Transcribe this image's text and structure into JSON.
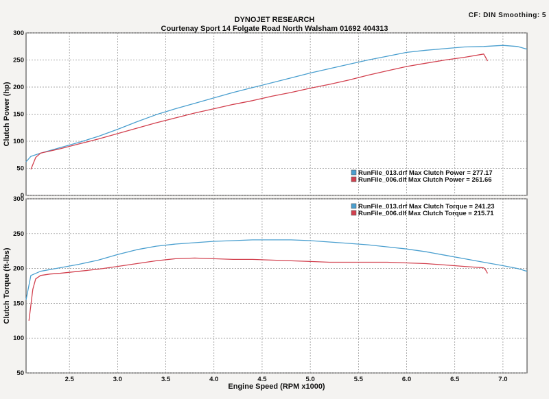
{
  "header": {
    "title": "DYNOJET RESEARCH",
    "subtitle": "Courtenay Sport 14 Folgate Road North Walsham 01692 404313",
    "corner": "CF: DIN  Smoothing: 5"
  },
  "colors": {
    "run013": "#4a9fcf",
    "run006": "#d2404e"
  },
  "chart_data": [
    {
      "type": "line",
      "title": "",
      "xlabel": "",
      "ylabel": "Clutch Power (hp)",
      "xlim": [
        2.05,
        7.25
      ],
      "ylim": [
        0,
        300
      ],
      "x_ticks": [
        "2.5",
        "3.0",
        "3.5",
        "4.0",
        "4.5",
        "5.0",
        "5.5",
        "6.0",
        "6.5",
        "7.0"
      ],
      "y_ticks": [
        "0",
        "50",
        "100",
        "150",
        "200",
        "250",
        "300"
      ],
      "grid": true,
      "legend_position": "bottom-right",
      "legend": [
        "RunFile_013.drf Max Clutch Power = 277.17",
        "RunFile_006.dlf Max Clutch Power = 261.66"
      ],
      "series": [
        {
          "name": "RunFile_013.drf",
          "color": "#4a9fcf",
          "x": [
            2.05,
            2.1,
            2.2,
            2.4,
            2.6,
            2.8,
            3.0,
            3.2,
            3.4,
            3.6,
            3.8,
            4.0,
            4.2,
            4.4,
            4.6,
            4.8,
            5.0,
            5.2,
            5.4,
            5.6,
            5.8,
            6.0,
            6.2,
            6.4,
            6.6,
            6.8,
            7.0,
            7.15,
            7.25
          ],
          "y": [
            62,
            72,
            78,
            88,
            98,
            109,
            122,
            136,
            149,
            160,
            170,
            180,
            190,
            199,
            208,
            217,
            226,
            234,
            242,
            250,
            257,
            264,
            268,
            271,
            274,
            275,
            277,
            275,
            270
          ]
        },
        {
          "name": "RunFile_006.dlf",
          "color": "#d2404e",
          "x": [
            2.1,
            2.15,
            2.2,
            2.4,
            2.6,
            2.8,
            3.0,
            3.2,
            3.4,
            3.6,
            3.8,
            4.0,
            4.2,
            4.4,
            4.6,
            4.8,
            5.0,
            5.2,
            5.4,
            5.6,
            5.8,
            6.0,
            6.2,
            6.4,
            6.6,
            6.8,
            6.82,
            6.84
          ],
          "y": [
            48,
            70,
            78,
            86,
            95,
            104,
            114,
            124,
            134,
            143,
            152,
            160,
            168,
            175,
            183,
            190,
            198,
            205,
            213,
            222,
            230,
            238,
            244,
            250,
            255,
            261,
            255,
            248
          ]
        }
      ]
    },
    {
      "type": "line",
      "title": "",
      "xlabel": "Engine Speed (RPM x1000)",
      "ylabel": "Clutch Torque (ft-lbs)",
      "xlim": [
        2.05,
        7.25
      ],
      "ylim": [
        50,
        300
      ],
      "x_ticks": [
        "2.5",
        "3.0",
        "3.5",
        "4.0",
        "4.5",
        "5.0",
        "5.5",
        "6.0",
        "6.5",
        "7.0"
      ],
      "y_ticks": [
        "50",
        "100",
        "150",
        "200",
        "250",
        "300"
      ],
      "grid": true,
      "legend_position": "top-right",
      "legend": [
        "RunFile_013.drf Max Clutch Torque = 241.23",
        "RunFile_006.dlf Max Clutch Torque = 215.71"
      ],
      "series": [
        {
          "name": "RunFile_013.drf",
          "color": "#4a9fcf",
          "x": [
            2.05,
            2.1,
            2.2,
            2.4,
            2.6,
            2.8,
            3.0,
            3.2,
            3.4,
            3.6,
            3.8,
            4.0,
            4.2,
            4.4,
            4.6,
            4.8,
            5.0,
            5.2,
            5.4,
            5.6,
            5.8,
            6.0,
            6.2,
            6.4,
            6.6,
            6.8,
            7.0,
            7.15,
            7.25
          ],
          "y": [
            155,
            190,
            196,
            201,
            206,
            212,
            220,
            227,
            232,
            235,
            237,
            239,
            240,
            241,
            241,
            241,
            240,
            238,
            236,
            234,
            231,
            228,
            224,
            219,
            214,
            209,
            204,
            200,
            196
          ]
        },
        {
          "name": "RunFile_006.dlf",
          "color": "#d2404e",
          "x": [
            2.08,
            2.12,
            2.15,
            2.2,
            2.3,
            2.4,
            2.6,
            2.8,
            3.0,
            3.2,
            3.4,
            3.6,
            3.8,
            4.0,
            4.2,
            4.4,
            4.6,
            4.8,
            5.0,
            5.2,
            5.4,
            5.6,
            5.8,
            6.0,
            6.2,
            6.4,
            6.6,
            6.8,
            6.82,
            6.84
          ],
          "y": [
            125,
            170,
            185,
            190,
            192,
            193,
            196,
            199,
            203,
            207,
            211,
            214,
            215,
            214,
            213,
            213,
            212,
            211,
            210,
            209,
            209,
            209,
            209,
            208,
            207,
            205,
            203,
            201,
            198,
            193
          ]
        }
      ]
    }
  ]
}
